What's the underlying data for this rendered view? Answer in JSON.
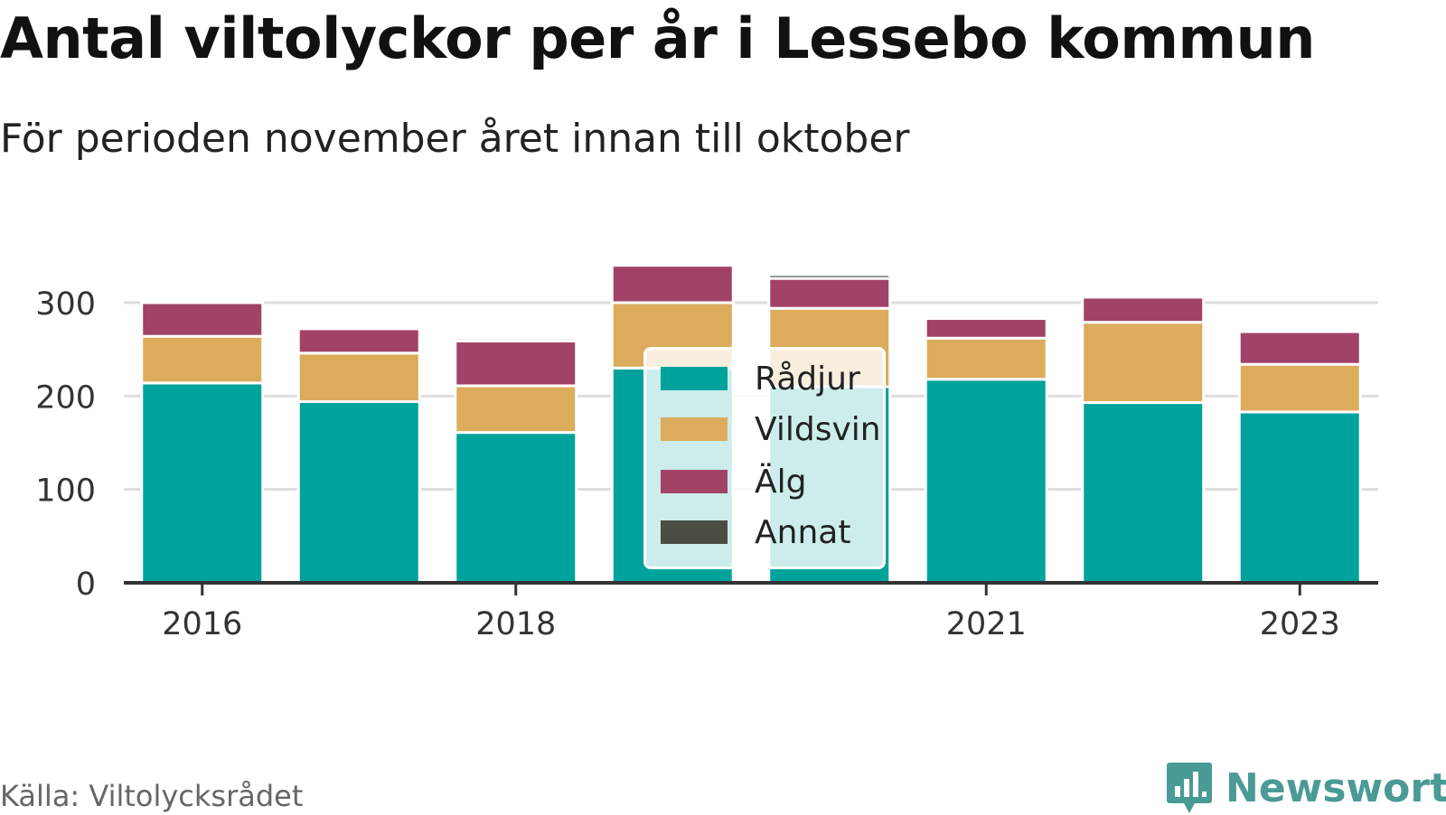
{
  "title": "Antal viltolyckor per år i Lessebo kommun",
  "subtitle": "För perioden november året innan till oktober",
  "source": "Källa: Viltolycksrådet",
  "brand": {
    "name": "Newsworthy",
    "logo_icon": "bar-chart-speech-bubble-icon"
  },
  "colors": {
    "Rådjur": "#00a39b",
    "Vildsvin": "#dcac5c",
    "Älg": "#a24267",
    "Annat": "#4b4d43",
    "grid": "#dddddd",
    "axis": "#333333",
    "brand": "#4a9a96"
  },
  "legend": {
    "items": [
      {
        "label": "Rådjur",
        "color": "#00a39b"
      },
      {
        "label": "Vildsvin",
        "color": "#dcac5c"
      },
      {
        "label": "Älg",
        "color": "#a24267"
      },
      {
        "label": "Annat",
        "color": "#4b4d43"
      }
    ]
  },
  "chart_data": {
    "type": "bar",
    "stacked": true,
    "title": "Antal viltolyckor per år i Lessebo kommun",
    "subtitle": "För perioden november året innan till oktober",
    "categories": [
      "2016",
      "2017",
      "2018",
      "2019",
      "2020",
      "2021",
      "2022",
      "2023"
    ],
    "x_tick_labels": [
      "2016",
      "2018",
      "2021",
      "2023"
    ],
    "y_ticks": [
      0,
      100,
      200,
      300
    ],
    "ylim": [
      0,
      345
    ],
    "grid": true,
    "legend_position": "center",
    "series": [
      {
        "name": "Rådjur",
        "values": [
          214,
          194,
          161,
          230,
          210,
          218,
          193,
          183
        ]
      },
      {
        "name": "Vildsvin",
        "values": [
          50,
          52,
          50,
          70,
          84,
          44,
          86,
          51
        ]
      },
      {
        "name": "Älg",
        "values": [
          36,
          26,
          48,
          40,
          32,
          21,
          27,
          35
        ]
      },
      {
        "name": "Annat",
        "values": [
          0,
          0,
          3,
          0,
          4,
          0,
          2,
          2
        ]
      }
    ]
  }
}
